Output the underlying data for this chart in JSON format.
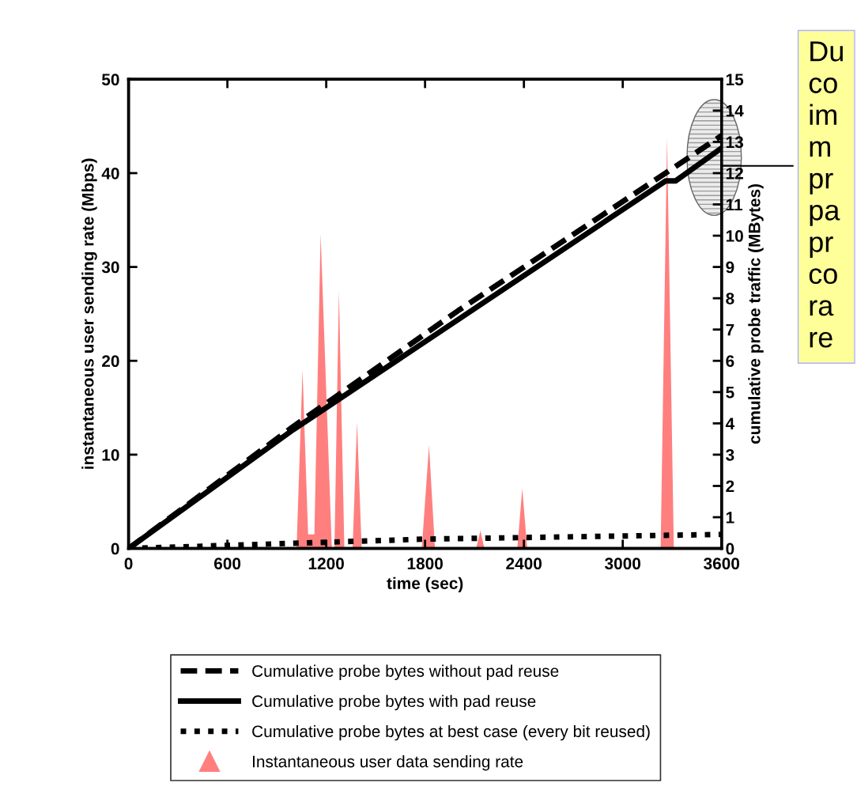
{
  "chart_data": {
    "type": "line",
    "xlabel": "time (sec)",
    "ylabel": "instantaneous user sending rate (Mbps)",
    "y2label": "cumulative probe traffic (MBytes)",
    "xlim": [
      0,
      3600
    ],
    "xticks": [
      0,
      600,
      1200,
      1800,
      2400,
      3000,
      3600
    ],
    "ylim": [
      0,
      50
    ],
    "yticks": [
      0,
      10,
      20,
      30,
      40,
      50
    ],
    "y2lim": [
      0,
      15
    ],
    "y2ticks": [
      0,
      1,
      2,
      3,
      4,
      5,
      6,
      7,
      8,
      9,
      10,
      11,
      12,
      13,
      14,
      15
    ],
    "grid": false,
    "legend": "bottom",
    "series": [
      {
        "name": "Cumulative probe bytes without pad reuse",
        "axis": "y2",
        "color": "#000000",
        "line_style": "dashed",
        "x": [
          0,
          1000,
          2000,
          3260,
          3600
        ],
        "values": [
          0,
          3.9,
          7.6,
          12.0,
          13.2
        ]
      },
      {
        "name": "Cumulative probe bytes with pad reuse",
        "axis": "y2",
        "color": "#000000",
        "line_style": "solid",
        "x": [
          0,
          1000,
          1200,
          3260,
          3320,
          3600
        ],
        "values": [
          0,
          3.8,
          4.5,
          11.75,
          11.75,
          12.8
        ]
      },
      {
        "name": "Cumulative probe bytes at best case (every bit reused)",
        "axis": "y2",
        "color": "#000000",
        "line_style": "dotted",
        "x": [
          0,
          600,
          1200,
          1800,
          2400,
          3000,
          3600
        ],
        "values": [
          0,
          0.1,
          0.2,
          0.3,
          0.35,
          0.4,
          0.45
        ]
      },
      {
        "name": "Instantaneous user data sending rate",
        "type": "area",
        "axis": "y",
        "color": "#ff7f7f",
        "x": [
          0,
          1020,
          1056,
          1090,
          1128,
          1166,
          1234,
          1250,
          1277,
          1310,
          1360,
          1387,
          1415,
          1780,
          1824,
          1860,
          2110,
          2136,
          2160,
          2360,
          2390,
          2420,
          3230,
          3269,
          3310,
          3600
        ],
        "values": [
          0,
          0,
          19,
          1.5,
          1.5,
          33.5,
          0,
          0,
          27.5,
          0,
          0,
          13.5,
          0,
          0,
          11,
          0,
          0,
          1.9,
          0,
          0,
          6.4,
          0,
          0,
          43.8,
          0,
          0
        ]
      }
    ],
    "annotations": [
      "Du\nco\nim\nm\npr\npa\npr\nco\nra\nre"
    ]
  }
}
